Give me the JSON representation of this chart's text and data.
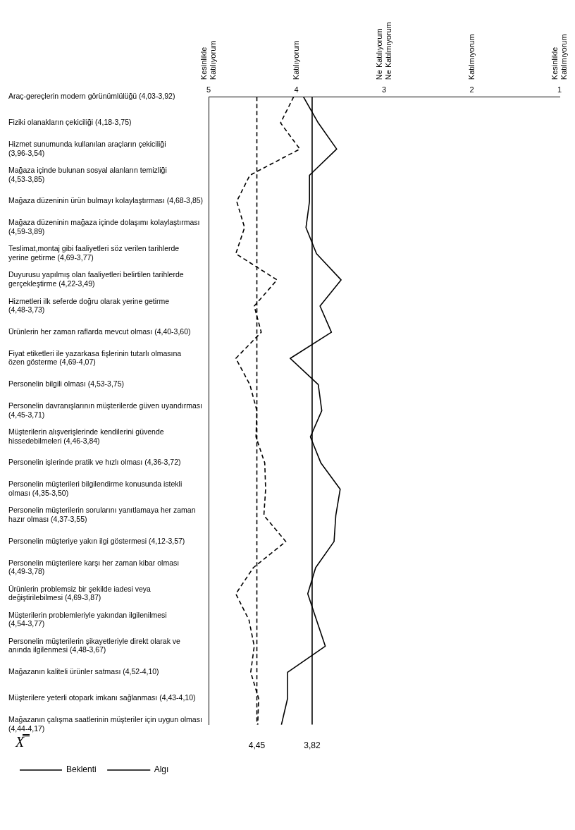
{
  "chart_data": {
    "type": "line",
    "orientation": "horizontal",
    "grid": false,
    "marker": "none",
    "legend": "bottom left",
    "categories": [
      "Araç-gereçlerin modern görünümlülüğü (4,03-3,92)",
      "Fiziki olanakların çekiciliği (4,18-3,75)",
      "Hizmet sunumunda kullanılan araçların çekiciliği (3,96-3,54)",
      "Mağaza içinde bulunan sosyal alanların temizliği (4,53-3,85)",
      "Mağaza düzeninin ürün bulmayı kolaylaştırması (4,68-3,85)",
      "Mağaza düzeninin mağaza içinde dolaşımı kolaylaştırması (4,59-3,89)",
      "Teslimat,montaj gibi faaliyetleri söz verilen tarihlerde yerine getirme (4,69-3,77)",
      "Duyurusu yapılmış olan faaliyetleri belirtilen tarihlerde gerçekleştirme (4,22-3,49)",
      "Hizmetleri ilk seferde doğru olarak yerine getirme (4,48-3,73)",
      "Ürünlerin her zaman raflarda mevcut olması (4,40-3,60)",
      "Fiyat etiketleri ile yazarkasa fişlerinin tutarlı olmasına özen gösterme (4,69-4,07)",
      "Personelin bilgili olması (4,53-3,75)",
      "Personelin davranışlarının müşterilerde güven uyandırması (4,45-3,71)",
      "Müşterilerin alışverişlerinde kendilerini güvende hissedebilmeleri (4,46-3,84)",
      "Personelin işlerinde pratik ve hızlı olması (4,36-3,72)",
      "Personelin müşterileri bilgilendirme konusunda istekli olması (4,35-3,50)",
      "Personelin müşterilerin sorularını yanıtlamaya her zaman hazır olması (4,37-3,55)",
      "Personelin müşteriye yakın ilgi göstermesi (4,12-3,57)",
      "Personelin müşterilere karşı her zaman kibar olması (4,49-3,78)",
      "Ürünlerin problemsiz bir şekilde iadesi veya değiştirilebilmesi (4,69-3,87)",
      "Müşterilerin problemleriyle yakından ilgilenilmesi (4,54-3,77)",
      "Personelin müşterilerin şikayetleriyle direkt olarak ve anında ilgilenmesi (4,48-3,67)",
      "Mağazanın kaliteli ürünler satması (4,52-4,10)",
      "Müşterilere yeterli otopark imkanı sağlanması (4,43-4,10)",
      "Mağazanın çalışma saatlerinin müşteriler için uygun olması (4,44-4,17)"
    ],
    "series": [
      {
        "name": "Beklenti",
        "color": "#000000",
        "line_style": "dashed",
        "values": [
          4.03,
          4.18,
          3.96,
          4.53,
          4.68,
          4.59,
          4.69,
          4.22,
          4.48,
          4.4,
          4.69,
          4.53,
          4.45,
          4.46,
          4.36,
          4.35,
          4.37,
          4.12,
          4.49,
          4.69,
          4.54,
          4.48,
          4.52,
          4.43,
          4.44
        ]
      },
      {
        "name": "Algı",
        "color": "#000000",
        "line_style": "solid",
        "values": [
          3.92,
          3.75,
          3.54,
          3.85,
          3.85,
          3.89,
          3.77,
          3.49,
          3.73,
          3.6,
          4.07,
          3.75,
          3.71,
          3.84,
          3.72,
          3.5,
          3.55,
          3.57,
          3.78,
          3.87,
          3.77,
          3.67,
          4.1,
          4.1,
          4.17
        ]
      }
    ],
    "xlim": [
      5,
      1
    ],
    "xticks": [
      5,
      4,
      3,
      2,
      1
    ],
    "ref_lines": [
      {
        "axis": "x",
        "value": 4.45,
        "label": "4,45",
        "color": "#000000",
        "line_style": "dashed"
      },
      {
        "axis": "x",
        "value": 3.82,
        "label": "3,82",
        "color": "#000000",
        "line_style": "solid"
      }
    ],
    "annotations": [
      "Kesinlikle Katılıyorum",
      "Katılıyorum",
      "Ne Katılıyorum Ne Katılmıyorum",
      "Katılmıyorum",
      "Kesinlikle Katılmıyorum",
      "X̿"
    ]
  }
}
